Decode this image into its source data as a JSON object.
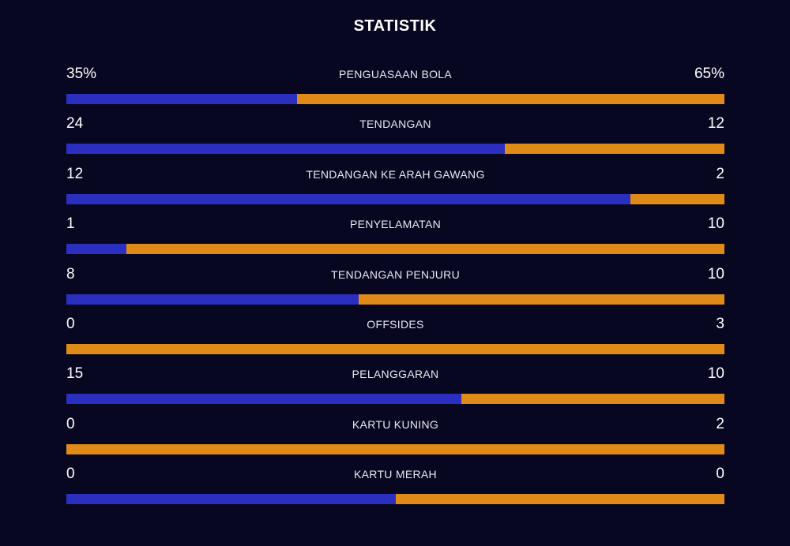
{
  "header": {
    "title": "STATISTIK"
  },
  "colors": {
    "background": "#080721",
    "home": "#2a2fc0",
    "away": "#e08a18"
  },
  "stats": [
    {
      "label": "PENGUASAAN BOLA",
      "home": "35%",
      "away": "65%",
      "home_share": 0.35
    },
    {
      "label": "TENDANGAN",
      "home": "24",
      "away": "12",
      "home_share": 0.6667
    },
    {
      "label": "TENDANGAN KE ARAH GAWANG",
      "home": "12",
      "away": "2",
      "home_share": 0.857
    },
    {
      "label": "PENYELAMATAN",
      "home": "1",
      "away": "10",
      "home_share": 0.0909
    },
    {
      "label": "TENDANGAN PENJURU",
      "home": "8",
      "away": "10",
      "home_share": 0.4444
    },
    {
      "label": "OFFSIDES",
      "home": "0",
      "away": "3",
      "home_share": 0
    },
    {
      "label": "PELANGGARAN",
      "home": "15",
      "away": "10",
      "home_share": 0.6
    },
    {
      "label": "KARTU KUNING",
      "home": "0",
      "away": "2",
      "home_share": 0
    },
    {
      "label": "KARTU MERAH",
      "home": "0",
      "away": "0",
      "home_share": 0.5
    }
  ]
}
